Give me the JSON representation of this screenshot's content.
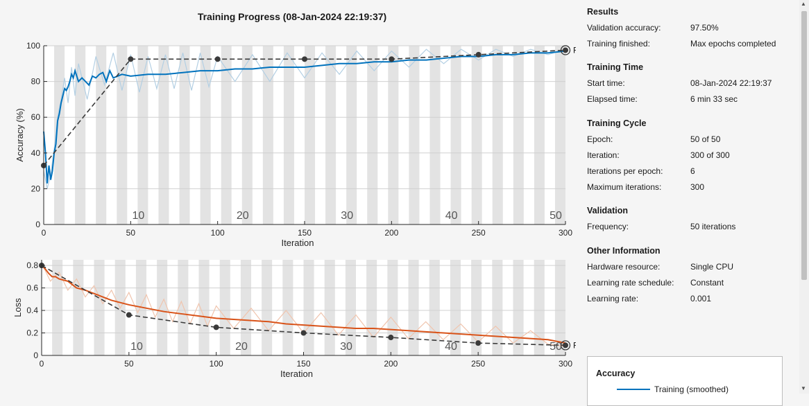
{
  "title": "Training Progress (08-Jan-2024 22:19:37)",
  "chart_data": [
    {
      "type": "line",
      "name": "accuracy",
      "xlabel": "Iteration",
      "ylabel": "Accuracy (%)",
      "xlim": [
        0,
        300
      ],
      "ylim": [
        0,
        100
      ],
      "x_ticks": [
        0,
        50,
        100,
        150,
        200,
        250,
        300
      ],
      "y_ticks": [
        0,
        20,
        40,
        60,
        80,
        100
      ],
      "grid": true,
      "epoch_labels": [
        {
          "epoch": "10",
          "iteration": 60
        },
        {
          "epoch": "20",
          "iteration": 120
        },
        {
          "epoch": "30",
          "iteration": 180
        },
        {
          "epoch": "40",
          "iteration": 240
        },
        {
          "epoch": "50",
          "iteration": 300
        }
      ],
      "training_smoothed": {
        "x": [
          0,
          1,
          2,
          3,
          4,
          5,
          6,
          7,
          8,
          9,
          10,
          11,
          12,
          13,
          14,
          15,
          16,
          17,
          18,
          20,
          22,
          24,
          26,
          28,
          30,
          32,
          34,
          36,
          38,
          40,
          45,
          50,
          60,
          70,
          80,
          90,
          100,
          110,
          120,
          130,
          140,
          150,
          160,
          170,
          180,
          190,
          200,
          210,
          220,
          230,
          240,
          250,
          260,
          270,
          280,
          290,
          300
        ],
        "y": [
          52,
          40,
          23,
          33,
          25,
          30,
          40,
          45,
          58,
          62,
          68,
          72,
          76,
          75,
          77,
          80,
          84,
          82,
          86,
          80,
          82,
          80,
          78,
          83,
          82,
          84,
          85,
          80,
          86,
          82,
          84,
          83,
          84,
          84,
          85,
          86,
          86,
          87,
          87,
          88,
          88,
          88,
          89,
          90,
          90,
          91,
          91,
          92,
          92,
          93,
          94,
          94,
          95,
          95,
          96,
          96,
          97
        ]
      },
      "training_raw": {
        "x": [
          0,
          2,
          4,
          6,
          8,
          10,
          12,
          14,
          16,
          18,
          20,
          25,
          30,
          35,
          40,
          45,
          50,
          55,
          60,
          65,
          70,
          75,
          80,
          85,
          90,
          95,
          100,
          110,
          120,
          130,
          140,
          150,
          160,
          170,
          180,
          190,
          200,
          210,
          220,
          230,
          240,
          250,
          260,
          270,
          280,
          290,
          300
        ],
        "y": [
          30,
          20,
          28,
          42,
          60,
          70,
          82,
          68,
          88,
          72,
          90,
          70,
          94,
          78,
          96,
          75,
          95,
          74,
          94,
          76,
          95,
          76,
          96,
          75,
          96,
          77,
          94,
          80,
          95,
          80,
          96,
          82,
          96,
          84,
          97,
          86,
          97,
          88,
          98,
          90,
          98,
          92,
          98,
          94,
          98,
          95,
          98
        ]
      },
      "validation": {
        "x": [
          0,
          50,
          100,
          150,
          200,
          250,
          300
        ],
        "y": [
          33,
          92.5,
          92.5,
          92.5,
          92.5,
          95,
          97.5
        ]
      },
      "final_label": "Final"
    },
    {
      "type": "line",
      "name": "loss",
      "xlabel": "Iteration",
      "ylabel": "Loss",
      "xlim": [
        0,
        300
      ],
      "ylim": [
        0,
        0.85
      ],
      "x_ticks": [
        0,
        50,
        100,
        150,
        200,
        250,
        300
      ],
      "y_ticks": [
        0,
        0.2,
        0.4,
        0.6,
        0.8
      ],
      "grid": true,
      "epoch_labels": [
        {
          "epoch": "10",
          "iteration": 60
        },
        {
          "epoch": "20",
          "iteration": 120
        },
        {
          "epoch": "30",
          "iteration": 180
        },
        {
          "epoch": "40",
          "iteration": 240
        },
        {
          "epoch": "50",
          "iteration": 300
        }
      ],
      "training_smoothed": {
        "x": [
          0,
          2,
          4,
          6,
          8,
          10,
          15,
          20,
          25,
          30,
          35,
          40,
          45,
          50,
          60,
          70,
          80,
          90,
          100,
          110,
          120,
          130,
          140,
          150,
          160,
          170,
          180,
          190,
          200,
          210,
          220,
          230,
          240,
          250,
          260,
          270,
          280,
          290,
          300
        ],
        "y": [
          0.8,
          0.77,
          0.73,
          0.7,
          0.7,
          0.68,
          0.66,
          0.6,
          0.58,
          0.55,
          0.52,
          0.49,
          0.47,
          0.45,
          0.42,
          0.39,
          0.37,
          0.35,
          0.33,
          0.32,
          0.31,
          0.3,
          0.28,
          0.27,
          0.26,
          0.25,
          0.24,
          0.24,
          0.23,
          0.22,
          0.21,
          0.2,
          0.19,
          0.18,
          0.17,
          0.16,
          0.15,
          0.14,
          0.11
        ]
      },
      "training_raw": {
        "x": [
          0,
          5,
          10,
          15,
          20,
          25,
          30,
          35,
          40,
          45,
          50,
          55,
          60,
          65,
          70,
          75,
          80,
          85,
          90,
          95,
          100,
          110,
          120,
          130,
          140,
          150,
          160,
          170,
          180,
          190,
          200,
          210,
          220,
          230,
          240,
          250,
          260,
          270,
          280,
          290,
          300
        ],
        "y": [
          0.82,
          0.66,
          0.74,
          0.58,
          0.68,
          0.52,
          0.62,
          0.46,
          0.58,
          0.42,
          0.56,
          0.38,
          0.54,
          0.34,
          0.5,
          0.3,
          0.48,
          0.28,
          0.46,
          0.26,
          0.44,
          0.24,
          0.42,
          0.22,
          0.4,
          0.2,
          0.38,
          0.18,
          0.36,
          0.16,
          0.34,
          0.15,
          0.3,
          0.14,
          0.28,
          0.12,
          0.26,
          0.11,
          0.22,
          0.1,
          0.08
        ]
      },
      "validation": {
        "x": [
          0,
          50,
          100,
          150,
          200,
          250,
          300
        ],
        "y": [
          0.8,
          0.36,
          0.25,
          0.2,
          0.16,
          0.11,
          0.09
        ]
      },
      "final_label": "Final"
    }
  ],
  "colors": {
    "accuracy_line": "#0072BD",
    "accuracy_raw": "#b3cfe3",
    "loss_line": "#D95319",
    "loss_raw": "#f0c4ad",
    "validation": "#3a3a3a",
    "epoch_band": "#e3e3e3",
    "plot_bg": "#ffffff"
  },
  "info": {
    "results": {
      "heading": "Results",
      "validation_accuracy_label": "Validation accuracy:",
      "validation_accuracy_value": "97.50%",
      "training_finished_label": "Training finished:",
      "training_finished_value": "Max epochs completed"
    },
    "training_time": {
      "heading": "Training Time",
      "start_time_label": "Start time:",
      "start_time_value": "08-Jan-2024 22:19:37",
      "elapsed_time_label": "Elapsed time:",
      "elapsed_time_value": "6 min 33 sec"
    },
    "training_cycle": {
      "heading": "Training Cycle",
      "epoch_label": "Epoch:",
      "epoch_value": "50 of 50",
      "iteration_label": "Iteration:",
      "iteration_value": "300 of 300",
      "iterations_per_epoch_label": "Iterations per epoch:",
      "iterations_per_epoch_value": "6",
      "max_iterations_label": "Maximum iterations:",
      "max_iterations_value": "300"
    },
    "validation": {
      "heading": "Validation",
      "frequency_label": "Frequency:",
      "frequency_value": "50 iterations"
    },
    "other": {
      "heading": "Other Information",
      "hardware_label": "Hardware resource:",
      "hardware_value": "Single CPU",
      "lr_schedule_label": "Learning rate schedule:",
      "lr_schedule_value": "Constant",
      "lr_label": "Learning rate:",
      "lr_value": "0.001"
    }
  },
  "legend": {
    "title": "Accuracy",
    "items": [
      "Training (smoothed)"
    ]
  },
  "scrollbar": {
    "up_icon": "scroll-up-arrow-icon",
    "down_icon": "scroll-down-arrow-icon"
  }
}
